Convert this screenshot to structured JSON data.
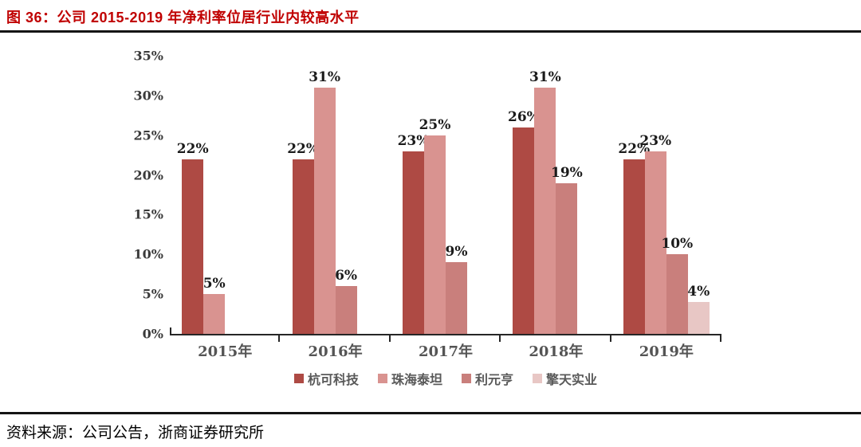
{
  "figure": {
    "title": "图 36：公司 2015-2019 年净利率位居行业内较高水平",
    "source": "资料来源：公司公告，浙商证券研究所"
  },
  "chart_data": {
    "type": "bar",
    "title": "公司 2015-2019 年净利率位居行业内较高水平",
    "categories": [
      "2015年",
      "2016年",
      "2017年",
      "2018年",
      "2019年"
    ],
    "series": [
      {
        "name": "杭可科技",
        "color": "#ae4a44",
        "values": [
          22,
          22,
          23,
          26,
          22
        ]
      },
      {
        "name": "珠海泰坦",
        "color": "#d99390",
        "values": [
          5,
          31,
          25,
          31,
          23
        ]
      },
      {
        "name": "利元亨",
        "color": "#c97f7c",
        "values": [
          null,
          6,
          9,
          19,
          10
        ]
      },
      {
        "name": "擎天实业",
        "color": "#e8c7c5",
        "values": [
          null,
          null,
          null,
          null,
          4
        ]
      }
    ],
    "data_label_suffix": "%",
    "xlabel": "",
    "ylabel": "",
    "ylim": [
      0,
      35
    ],
    "ytick_values": [
      0,
      5,
      10,
      15,
      20,
      25,
      30,
      35
    ],
    "ytick_labels": [
      "0%",
      "5%",
      "10%",
      "15%",
      "20%",
      "25%",
      "30%",
      "35%"
    ],
    "grid": false,
    "legend_position": "bottom"
  }
}
